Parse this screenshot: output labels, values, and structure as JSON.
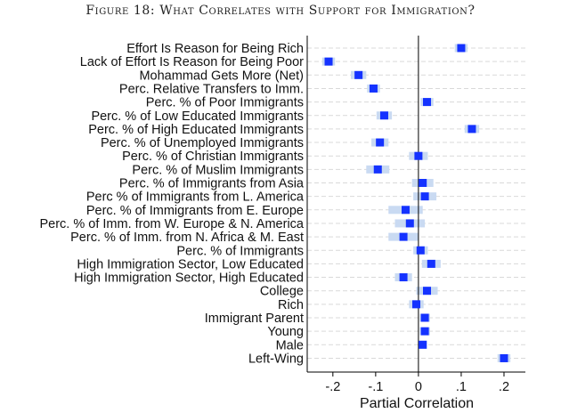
{
  "chart_data": {
    "type": "scatter",
    "title": "Figure 18: What Correlates with Support for Immigration?",
    "xlabel": "Partial Correlation",
    "ylabel": "",
    "xlim": [
      -0.26,
      0.25
    ],
    "xticks": [
      -0.2,
      -0.1,
      0,
      0.1,
      0.2
    ],
    "xtick_labels": [
      "-.2",
      "-.1",
      "0",
      ".1",
      ".2"
    ],
    "reference_line": 0,
    "grid": "horizontal dashed",
    "colors": {
      "point": "#1432ff",
      "ci": "#c9daf2",
      "grid": "#d9d9d9"
    },
    "items": [
      {
        "label": "Effort Is Reason for Being Rich",
        "value": 0.1,
        "ci": [
          0.085,
          0.115
        ]
      },
      {
        "label": "Lack of Effort Is Reason for Being Poor",
        "value": -0.21,
        "ci": [
          -0.225,
          -0.195
        ]
      },
      {
        "label": "Mohammad Gets More (Net)",
        "value": -0.14,
        "ci": [
          -0.158,
          -0.122
        ]
      },
      {
        "label": "Perc. Relative Transfers to Imm.",
        "value": -0.105,
        "ci": [
          -0.12,
          -0.09
        ]
      },
      {
        "label": "Perc. % of Poor Immigrants",
        "value": 0.02,
        "ci": [
          0.005,
          0.035
        ]
      },
      {
        "label": "Perc. % of Low Educated Immigrants",
        "value": -0.08,
        "ci": [
          -0.098,
          -0.062
        ]
      },
      {
        "label": "Perc. % of High Educated Immigrants",
        "value": 0.125,
        "ci": [
          0.108,
          0.142
        ]
      },
      {
        "label": "Perc. % of Unemployed Immigrants",
        "value": -0.09,
        "ci": [
          -0.11,
          -0.07
        ]
      },
      {
        "label": "Perc. % of Christian Immigrants",
        "value": 0.0,
        "ci": [
          -0.022,
          0.022
        ]
      },
      {
        "label": "Perc. % of Muslim Immigrants",
        "value": -0.095,
        "ci": [
          -0.122,
          -0.068
        ]
      },
      {
        "label": "Perc. % of Immigrants from Asia",
        "value": 0.01,
        "ci": [
          -0.015,
          0.035
        ]
      },
      {
        "label": "Perc % of Immigrants from L. America",
        "value": 0.015,
        "ci": [
          -0.012,
          0.042
        ]
      },
      {
        "label": "Perc. % of Immigrants from E. Europe",
        "value": -0.03,
        "ci": [
          -0.07,
          0.01
        ]
      },
      {
        "label": "Perc. % of Imm. from W. Europe & N. America",
        "value": -0.02,
        "ci": [
          -0.055,
          0.015
        ]
      },
      {
        "label": "Perc. % of Imm. from N. Africa & M. East",
        "value": -0.035,
        "ci": [
          -0.07,
          0.0
        ]
      },
      {
        "label": "Perc. % of Immigrants",
        "value": 0.005,
        "ci": [
          -0.012,
          0.022
        ]
      },
      {
        "label": "High Immigration Sector, Low Educated",
        "value": 0.03,
        "ci": [
          0.008,
          0.052
        ]
      },
      {
        "label": "High Immigration Sector, High Educated",
        "value": -0.035,
        "ci": [
          -0.055,
          -0.015
        ]
      },
      {
        "label": "College",
        "value": 0.02,
        "ci": [
          -0.005,
          0.045
        ]
      },
      {
        "label": "Rich",
        "value": -0.005,
        "ci": [
          -0.022,
          0.012
        ]
      },
      {
        "label": "Immigrant Parent",
        "value": 0.015,
        "ci": [
          0.003,
          0.027
        ]
      },
      {
        "label": "Young",
        "value": 0.015,
        "ci": [
          0.003,
          0.027
        ]
      },
      {
        "label": "Male",
        "value": 0.01,
        "ci": [
          0.0,
          0.02
        ]
      },
      {
        "label": "Left-Wing",
        "value": 0.2,
        "ci": [
          0.185,
          0.215
        ]
      }
    ]
  }
}
